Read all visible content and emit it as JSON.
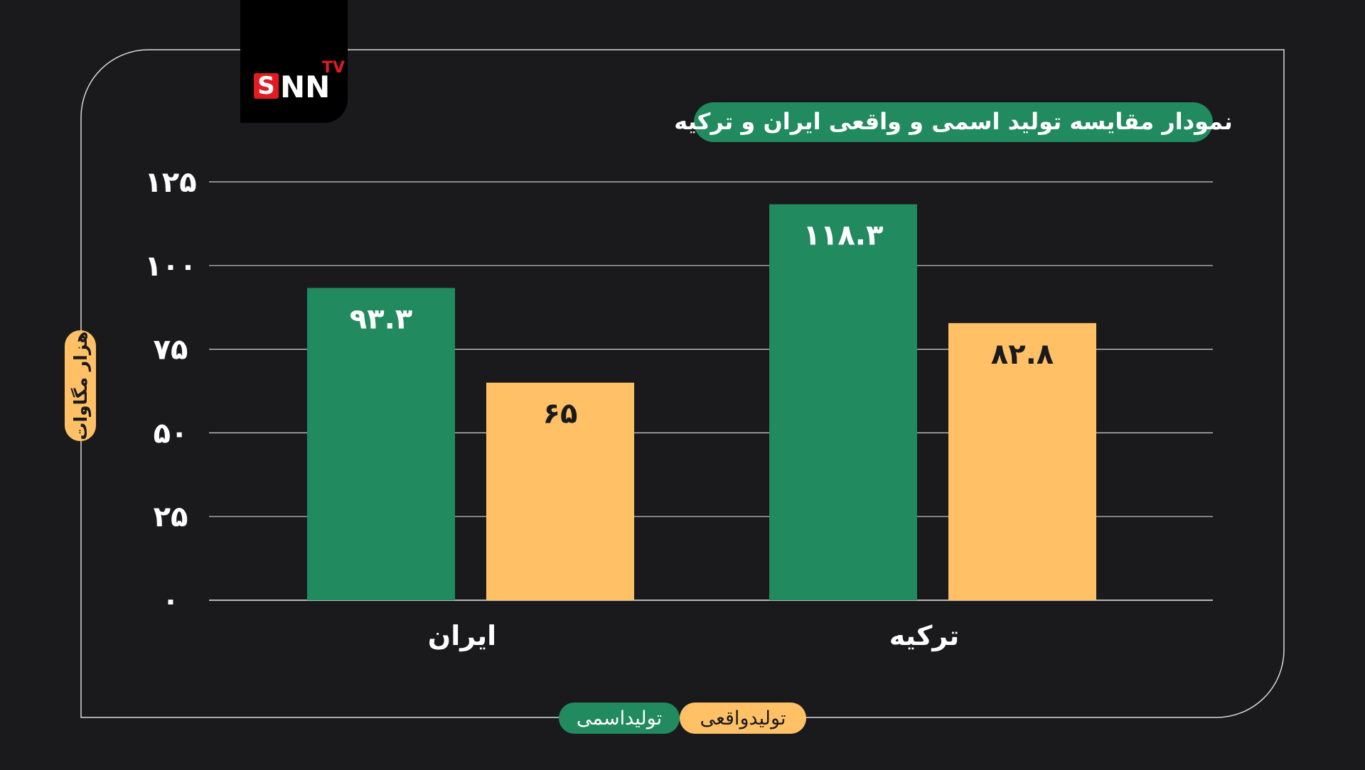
{
  "brand": {
    "logo_text": "SNN",
    "logo_super": "TV"
  },
  "colors": {
    "background": "#1a1a1d",
    "frame": "#d9d9d9",
    "nominal": "#218a5e",
    "actual": "#ffc066",
    "text_light": "#ffffff",
    "text_dark": "#1a1a1d",
    "grid": "#cfcfcf"
  },
  "chart_data": {
    "type": "bar",
    "title": "نمودار مقایسه تولید اسمی و واقعی ایران و ترکیه",
    "ylabel": "هزار مگاوات",
    "xlabel": "",
    "ylim": [
      0,
      125
    ],
    "yticks": [
      0,
      25,
      50,
      75,
      100,
      125
    ],
    "ytick_labels": [
      "۰",
      "۲۵",
      "۵۰",
      "۷۵",
      "۱۰۰",
      "۱۲۵"
    ],
    "grid": true,
    "legend_position": "bottom-center",
    "categories": [
      "ایران",
      "ترکیه"
    ],
    "series": [
      {
        "name": "تولیداسمی",
        "color": "#218a5e",
        "values": [
          93.3,
          118.3
        ],
        "labels": [
          "۹۳.۳",
          "۱۱۸.۳"
        ]
      },
      {
        "name": "تولیدواقعی",
        "color": "#ffc066",
        "values": [
          65,
          82.8
        ],
        "labels": [
          "۶۵",
          "۸۲.۸"
        ]
      }
    ]
  }
}
